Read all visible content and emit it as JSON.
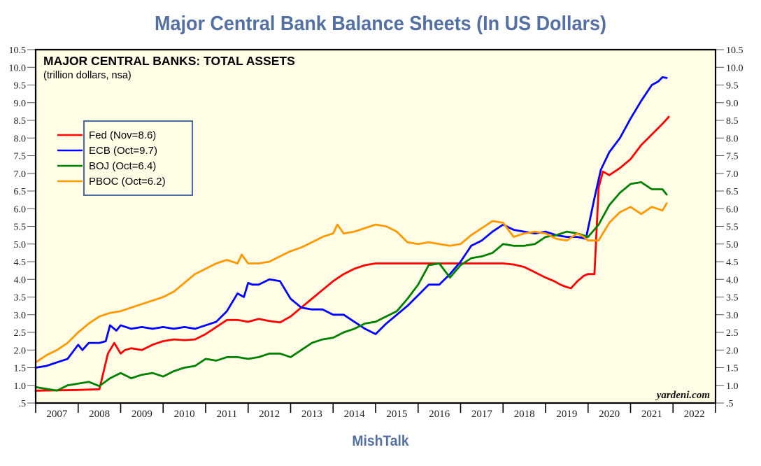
{
  "page": {
    "title": "Major Central Bank Balance Sheets (In US Dollars)",
    "footer": "MishTalk"
  },
  "chart_data": {
    "type": "line",
    "title": "MAJOR CENTRAL BANKS: TOTAL ASSETS",
    "subtitle": "(trillion dollars, nsa)",
    "xlabel": "",
    "ylabel": "",
    "watermark": "yardeni.com",
    "xlim": [
      2007,
      2023
    ],
    "ylim": [
      0.5,
      10.5
    ],
    "grid": false,
    "legend_position": "upper-left",
    "background": "#fffde6",
    "y_ticks": [
      0.5,
      1.0,
      1.5,
      2.0,
      2.5,
      3.0,
      3.5,
      4.0,
      4.5,
      5.0,
      5.5,
      6.0,
      6.5,
      7.0,
      7.5,
      8.0,
      8.5,
      9.0,
      9.5,
      10.0,
      10.5
    ],
    "y_tick_labels": [
      ".5",
      "1.0",
      "1.5",
      "2.0",
      "2.5",
      "3.0",
      "3.5",
      "4.0",
      "4.5",
      "5.0",
      "5.5",
      "6.0",
      "6.5",
      "7.0",
      "7.5",
      "8.0",
      "8.5",
      "9.0",
      "9.5",
      "10.0",
      "10.5"
    ],
    "x_tick_labels": [
      "2007",
      "2008",
      "2009",
      "2010",
      "2011",
      "2012",
      "2013",
      "2014",
      "2015",
      "2016",
      "2017",
      "2018",
      "2019",
      "2020",
      "2021",
      "2022"
    ],
    "series": [
      {
        "name": "Fed",
        "legend": "Fed (Nov=8.6)",
        "color": "#ff0000",
        "x": [
          2007.0,
          2007.5,
          2008.0,
          2008.5,
          2008.7,
          2008.85,
          2009.0,
          2009.1,
          2009.25,
          2009.5,
          2009.75,
          2010.0,
          2010.25,
          2010.5,
          2010.75,
          2011.0,
          2011.25,
          2011.5,
          2011.75,
          2012.0,
          2012.25,
          2012.5,
          2012.75,
          2013.0,
          2013.25,
          2013.5,
          2013.75,
          2014.0,
          2014.25,
          2014.5,
          2014.75,
          2015.0,
          2015.5,
          2016.0,
          2016.5,
          2017.0,
          2017.5,
          2018.0,
          2018.25,
          2018.5,
          2018.75,
          2019.0,
          2019.2,
          2019.35,
          2019.5,
          2019.6,
          2019.75,
          2019.9,
          2020.0,
          2020.15,
          2020.25,
          2020.35,
          2020.5,
          2020.75,
          2021.0,
          2021.25,
          2021.5,
          2021.75,
          2021.9
        ],
        "values": [
          0.85,
          0.86,
          0.87,
          0.89,
          1.9,
          2.2,
          1.9,
          2.0,
          2.05,
          2.0,
          2.15,
          2.25,
          2.3,
          2.28,
          2.3,
          2.45,
          2.65,
          2.85,
          2.85,
          2.8,
          2.88,
          2.82,
          2.78,
          2.95,
          3.2,
          3.45,
          3.7,
          3.95,
          4.15,
          4.3,
          4.4,
          4.45,
          4.45,
          4.45,
          4.45,
          4.45,
          4.45,
          4.45,
          4.42,
          4.35,
          4.2,
          4.05,
          3.95,
          3.85,
          3.78,
          3.75,
          3.95,
          4.1,
          4.15,
          4.15,
          6.6,
          7.05,
          6.95,
          7.15,
          7.4,
          7.8,
          8.1,
          8.4,
          8.6
        ]
      },
      {
        "name": "ECB",
        "legend": "ECB (Oct=9.7)",
        "color": "#0000ff",
        "x": [
          2007.0,
          2007.25,
          2007.5,
          2007.75,
          2008.0,
          2008.1,
          2008.25,
          2008.5,
          2008.65,
          2008.75,
          2008.9,
          2009.0,
          2009.25,
          2009.5,
          2009.75,
          2010.0,
          2010.25,
          2010.5,
          2010.75,
          2011.0,
          2011.25,
          2011.5,
          2011.75,
          2011.9,
          2012.0,
          2012.1,
          2012.25,
          2012.5,
          2012.75,
          2013.0,
          2013.25,
          2013.5,
          2013.75,
          2014.0,
          2014.25,
          2014.5,
          2014.75,
          2015.0,
          2015.25,
          2015.5,
          2015.75,
          2016.0,
          2016.25,
          2016.5,
          2016.75,
          2017.0,
          2017.25,
          2017.5,
          2017.75,
          2018.0,
          2018.25,
          2018.5,
          2018.75,
          2019.0,
          2019.25,
          2019.5,
          2019.75,
          2019.95,
          2020.15,
          2020.3,
          2020.5,
          2020.75,
          2021.0,
          2021.25,
          2021.5,
          2021.65,
          2021.75,
          2021.85
        ],
        "values": [
          1.5,
          1.55,
          1.65,
          1.75,
          2.15,
          2.0,
          2.2,
          2.2,
          2.25,
          2.7,
          2.55,
          2.7,
          2.6,
          2.65,
          2.6,
          2.65,
          2.6,
          2.65,
          2.6,
          2.7,
          2.8,
          3.1,
          3.6,
          3.5,
          3.9,
          3.85,
          3.85,
          4.0,
          3.95,
          3.45,
          3.2,
          3.15,
          3.15,
          3.0,
          3.0,
          2.8,
          2.6,
          2.45,
          2.75,
          3.0,
          3.25,
          3.55,
          3.85,
          3.85,
          4.15,
          4.5,
          4.95,
          5.1,
          5.35,
          5.55,
          5.4,
          5.35,
          5.3,
          5.35,
          5.25,
          5.2,
          5.2,
          5.15,
          6.3,
          7.1,
          7.6,
          8.0,
          8.55,
          9.05,
          9.5,
          9.6,
          9.72,
          9.7
        ]
      },
      {
        "name": "BOJ",
        "legend": "BOJ (Oct=6.4)",
        "color": "#008000",
        "x": [
          2007.0,
          2007.25,
          2007.5,
          2007.75,
          2008.0,
          2008.25,
          2008.5,
          2008.75,
          2009.0,
          2009.25,
          2009.5,
          2009.75,
          2010.0,
          2010.25,
          2010.5,
          2010.75,
          2011.0,
          2011.25,
          2011.5,
          2011.75,
          2012.0,
          2012.25,
          2012.5,
          2012.75,
          2013.0,
          2013.25,
          2013.5,
          2013.75,
          2014.0,
          2014.25,
          2014.5,
          2014.75,
          2015.0,
          2015.25,
          2015.5,
          2015.75,
          2016.0,
          2016.25,
          2016.5,
          2016.75,
          2017.0,
          2017.25,
          2017.5,
          2017.75,
          2018.0,
          2018.25,
          2018.5,
          2018.75,
          2019.0,
          2019.25,
          2019.5,
          2019.75,
          2020.0,
          2020.25,
          2020.5,
          2020.75,
          2021.0,
          2021.25,
          2021.5,
          2021.75,
          2021.85
        ],
        "values": [
          0.95,
          0.9,
          0.85,
          1.0,
          1.05,
          1.1,
          0.98,
          1.2,
          1.35,
          1.2,
          1.3,
          1.35,
          1.25,
          1.4,
          1.5,
          1.55,
          1.75,
          1.7,
          1.8,
          1.8,
          1.75,
          1.8,
          1.9,
          1.9,
          1.8,
          2.0,
          2.2,
          2.3,
          2.35,
          2.5,
          2.6,
          2.75,
          2.8,
          2.95,
          3.1,
          3.45,
          3.85,
          4.4,
          4.45,
          4.05,
          4.4,
          4.6,
          4.65,
          4.75,
          5.0,
          4.95,
          4.95,
          5.0,
          5.2,
          5.25,
          5.35,
          5.3,
          5.2,
          5.55,
          6.1,
          6.45,
          6.7,
          6.75,
          6.55,
          6.55,
          6.4
        ]
      },
      {
        "name": "PBOC",
        "legend": "PBOC (Oct=6.2)",
        "color": "#ff9900",
        "x": [
          2007.0,
          2007.25,
          2007.5,
          2007.75,
          2008.0,
          2008.25,
          2008.5,
          2008.75,
          2009.0,
          2009.25,
          2009.5,
          2009.75,
          2010.0,
          2010.25,
          2010.5,
          2010.75,
          2011.0,
          2011.25,
          2011.5,
          2011.75,
          2011.85,
          2012.0,
          2012.25,
          2012.5,
          2012.75,
          2013.0,
          2013.25,
          2013.5,
          2013.75,
          2014.0,
          2014.1,
          2014.25,
          2014.5,
          2014.75,
          2015.0,
          2015.25,
          2015.5,
          2015.75,
          2016.0,
          2016.25,
          2016.5,
          2016.75,
          2017.0,
          2017.25,
          2017.5,
          2017.75,
          2018.0,
          2018.25,
          2018.5,
          2018.75,
          2019.0,
          2019.25,
          2019.5,
          2019.75,
          2019.9,
          2020.0,
          2020.25,
          2020.5,
          2020.75,
          2021.0,
          2021.25,
          2021.5,
          2021.75,
          2021.85
        ],
        "values": [
          1.65,
          1.85,
          2.0,
          2.2,
          2.5,
          2.75,
          2.95,
          3.05,
          3.1,
          3.2,
          3.3,
          3.4,
          3.5,
          3.65,
          3.9,
          4.15,
          4.3,
          4.45,
          4.55,
          4.45,
          4.7,
          4.45,
          4.45,
          4.5,
          4.65,
          4.8,
          4.9,
          5.05,
          5.2,
          5.3,
          5.55,
          5.3,
          5.35,
          5.45,
          5.55,
          5.5,
          5.35,
          5.05,
          5.0,
          5.05,
          5.0,
          4.95,
          5.0,
          5.25,
          5.45,
          5.65,
          5.6,
          5.2,
          5.3,
          5.35,
          5.3,
          5.15,
          5.1,
          5.3,
          5.2,
          5.1,
          5.1,
          5.6,
          5.9,
          6.05,
          5.85,
          6.05,
          5.95,
          6.15
        ]
      }
    ]
  }
}
